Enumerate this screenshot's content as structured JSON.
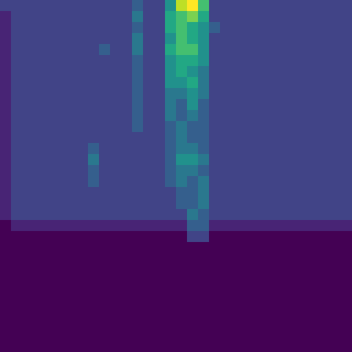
{
  "chart_data": {
    "type": "heatmap",
    "color": "viridis",
    "tick_labels": false,
    "zlim": [
      0,
      10
    ],
    "cells": [
      [
        2,
        2,
        2,
        2,
        2,
        2,
        2,
        2,
        2,
        2,
        2,
        2,
        3,
        2,
        2,
        5,
        9,
        10,
        7,
        2,
        2,
        2,
        2,
        2,
        2,
        2,
        2,
        2,
        2,
        2,
        2,
        2
      ],
      [
        1,
        2,
        2,
        2,
        2,
        2,
        2,
        2,
        2,
        2,
        2,
        2,
        4,
        2,
        2,
        6,
        7,
        8,
        6,
        2,
        2,
        2,
        2,
        2,
        2,
        2,
        2,
        2,
        2,
        2,
        2,
        2
      ],
      [
        1,
        2,
        2,
        2,
        2,
        2,
        2,
        2,
        2,
        2,
        2,
        2,
        3,
        2,
        2,
        6,
        7,
        6,
        5,
        3,
        2,
        2,
        2,
        2,
        2,
        2,
        2,
        2,
        2,
        2,
        2,
        2
      ],
      [
        1,
        2,
        2,
        2,
        2,
        2,
        2,
        2,
        2,
        2,
        2,
        2,
        4,
        2,
        2,
        5,
        7,
        6,
        5,
        2,
        2,
        2,
        2,
        2,
        2,
        2,
        2,
        2,
        2,
        2,
        2,
        2
      ],
      [
        1,
        2,
        2,
        2,
        2,
        2,
        2,
        2,
        2,
        3,
        2,
        2,
        4,
        2,
        2,
        6,
        7,
        7,
        5,
        2,
        2,
        2,
        2,
        2,
        2,
        2,
        2,
        2,
        2,
        2,
        2,
        2
      ],
      [
        1,
        2,
        2,
        2,
        2,
        2,
        2,
        2,
        2,
        2,
        2,
        2,
        3,
        2,
        2,
        5,
        6,
        6,
        5,
        2,
        2,
        2,
        2,
        2,
        2,
        2,
        2,
        2,
        2,
        2,
        2,
        2
      ],
      [
        1,
        2,
        2,
        2,
        2,
        2,
        2,
        2,
        2,
        2,
        2,
        2,
        3,
        2,
        2,
        5,
        6,
        5,
        4,
        2,
        2,
        2,
        2,
        2,
        2,
        2,
        2,
        2,
        2,
        2,
        2,
        2
      ],
      [
        1,
        2,
        2,
        2,
        2,
        2,
        2,
        2,
        2,
        2,
        2,
        2,
        3,
        2,
        2,
        5,
        5,
        6,
        4,
        2,
        2,
        2,
        2,
        2,
        2,
        2,
        2,
        2,
        2,
        2,
        2,
        2
      ],
      [
        1,
        2,
        2,
        2,
        2,
        2,
        2,
        2,
        2,
        2,
        2,
        2,
        3,
        2,
        2,
        4,
        4,
        5,
        4,
        2,
        2,
        2,
        2,
        2,
        2,
        2,
        2,
        2,
        2,
        2,
        2,
        2
      ],
      [
        1,
        2,
        2,
        2,
        2,
        2,
        2,
        2,
        2,
        2,
        2,
        2,
        3,
        2,
        2,
        4,
        3,
        5,
        3,
        2,
        2,
        2,
        2,
        2,
        2,
        2,
        2,
        2,
        2,
        2,
        2,
        2
      ],
      [
        1,
        2,
        2,
        2,
        2,
        2,
        2,
        2,
        2,
        2,
        2,
        2,
        3,
        2,
        2,
        4,
        3,
        4,
        3,
        2,
        2,
        2,
        2,
        2,
        2,
        2,
        2,
        2,
        2,
        2,
        2,
        2
      ],
      [
        1,
        2,
        2,
        2,
        2,
        2,
        2,
        2,
        2,
        2,
        2,
        2,
        3,
        2,
        2,
        3,
        4,
        3,
        3,
        2,
        2,
        2,
        2,
        2,
        2,
        2,
        2,
        2,
        2,
        2,
        2,
        2
      ],
      [
        1,
        2,
        2,
        2,
        2,
        2,
        2,
        2,
        2,
        2,
        2,
        2,
        2,
        2,
        2,
        3,
        4,
        3,
        3,
        2,
        2,
        2,
        2,
        2,
        2,
        2,
        2,
        2,
        2,
        2,
        2,
        2
      ],
      [
        1,
        2,
        2,
        2,
        2,
        2,
        2,
        2,
        3,
        2,
        2,
        2,
        2,
        2,
        2,
        3,
        4,
        4,
        3,
        2,
        2,
        2,
        2,
        2,
        2,
        2,
        2,
        2,
        2,
        2,
        2,
        2
      ],
      [
        1,
        2,
        2,
        2,
        2,
        2,
        2,
        2,
        4,
        2,
        2,
        2,
        2,
        2,
        2,
        3,
        5,
        5,
        4,
        2,
        2,
        2,
        2,
        2,
        2,
        2,
        2,
        2,
        2,
        2,
        2,
        2
      ],
      [
        1,
        2,
        2,
        2,
        2,
        2,
        2,
        2,
        3,
        2,
        2,
        2,
        2,
        2,
        2,
        3,
        4,
        4,
        3,
        2,
        2,
        2,
        2,
        2,
        2,
        2,
        2,
        2,
        2,
        2,
        2,
        2
      ],
      [
        1,
        2,
        2,
        2,
        2,
        2,
        2,
        2,
        3,
        2,
        2,
        2,
        2,
        2,
        2,
        3,
        4,
        3,
        4,
        2,
        2,
        2,
        2,
        2,
        2,
        2,
        2,
        2,
        2,
        2,
        2,
        2
      ],
      [
        1,
        2,
        2,
        2,
        2,
        2,
        2,
        2,
        2,
        2,
        2,
        2,
        2,
        2,
        2,
        2,
        3,
        3,
        4,
        2,
        2,
        2,
        2,
        2,
        2,
        2,
        2,
        2,
        2,
        2,
        2,
        2
      ],
      [
        1,
        2,
        2,
        2,
        2,
        2,
        2,
        2,
        2,
        2,
        2,
        2,
        2,
        2,
        2,
        2,
        3,
        3,
        4,
        2,
        2,
        2,
        2,
        2,
        2,
        2,
        2,
        2,
        2,
        2,
        2,
        2
      ],
      [
        1,
        2,
        2,
        2,
        2,
        2,
        2,
        2,
        2,
        2,
        2,
        2,
        2,
        2,
        2,
        2,
        2,
        4,
        3,
        2,
        2,
        2,
        2,
        2,
        2,
        2,
        2,
        2,
        2,
        2,
        2,
        2
      ],
      [
        0,
        1,
        1,
        1,
        1,
        1,
        1,
        1,
        1,
        1,
        1,
        1,
        1,
        1,
        1,
        1,
        1,
        3,
        3,
        1,
        1,
        1,
        1,
        1,
        1,
        1,
        1,
        1,
        1,
        1,
        1,
        1
      ],
      [
        0,
        0,
        0,
        0,
        0,
        0,
        0,
        0,
        0,
        0,
        0,
        0,
        0,
        0,
        0,
        0,
        0,
        2,
        2,
        0,
        0,
        0,
        0,
        0,
        0,
        0,
        0,
        0,
        0,
        0,
        0,
        0
      ],
      [
        0,
        0,
        0,
        0,
        0,
        0,
        0,
        0,
        0,
        0,
        0,
        0,
        0,
        0,
        0,
        0,
        0,
        0,
        0,
        0,
        0,
        0,
        0,
        0,
        0,
        0,
        0,
        0,
        0,
        0,
        0,
        0
      ],
      [
        0,
        0,
        0,
        0,
        0,
        0,
        0,
        0,
        0,
        0,
        0,
        0,
        0,
        0,
        0,
        0,
        0,
        0,
        0,
        0,
        0,
        0,
        0,
        0,
        0,
        0,
        0,
        0,
        0,
        0,
        0,
        0
      ],
      [
        0,
        0,
        0,
        0,
        0,
        0,
        0,
        0,
        0,
        0,
        0,
        0,
        0,
        0,
        0,
        0,
        0,
        0,
        0,
        0,
        0,
        0,
        0,
        0,
        0,
        0,
        0,
        0,
        0,
        0,
        0,
        0
      ],
      [
        0,
        0,
        0,
        0,
        0,
        0,
        0,
        0,
        0,
        0,
        0,
        0,
        0,
        0,
        0,
        0,
        0,
        0,
        0,
        0,
        0,
        0,
        0,
        0,
        0,
        0,
        0,
        0,
        0,
        0,
        0,
        0
      ],
      [
        0,
        0,
        0,
        0,
        0,
        0,
        0,
        0,
        0,
        0,
        0,
        0,
        0,
        0,
        0,
        0,
        0,
        0,
        0,
        0,
        0,
        0,
        0,
        0,
        0,
        0,
        0,
        0,
        0,
        0,
        0,
        0
      ],
      [
        0,
        0,
        0,
        0,
        0,
        0,
        0,
        0,
        0,
        0,
        0,
        0,
        0,
        0,
        0,
        0,
        0,
        0,
        0,
        0,
        0,
        0,
        0,
        0,
        0,
        0,
        0,
        0,
        0,
        0,
        0,
        0
      ],
      [
        0,
        0,
        0,
        0,
        0,
        0,
        0,
        0,
        0,
        0,
        0,
        0,
        0,
        0,
        0,
        0,
        0,
        0,
        0,
        0,
        0,
        0,
        0,
        0,
        0,
        0,
        0,
        0,
        0,
        0,
        0,
        0
      ],
      [
        0,
        0,
        0,
        0,
        0,
        0,
        0,
        0,
        0,
        0,
        0,
        0,
        0,
        0,
        0,
        0,
        0,
        0,
        0,
        0,
        0,
        0,
        0,
        0,
        0,
        0,
        0,
        0,
        0,
        0,
        0,
        0
      ],
      [
        0,
        0,
        0,
        0,
        0,
        0,
        0,
        0,
        0,
        0,
        0,
        0,
        0,
        0,
        0,
        0,
        0,
        0,
        0,
        0,
        0,
        0,
        0,
        0,
        0,
        0,
        0,
        0,
        0,
        0,
        0,
        0
      ],
      [
        0,
        0,
        0,
        0,
        0,
        0,
        0,
        0,
        0,
        0,
        0,
        0,
        0,
        0,
        0,
        0,
        0,
        0,
        0,
        0,
        0,
        0,
        0,
        0,
        0,
        0,
        0,
        0,
        0,
        0,
        0,
        0
      ]
    ]
  }
}
